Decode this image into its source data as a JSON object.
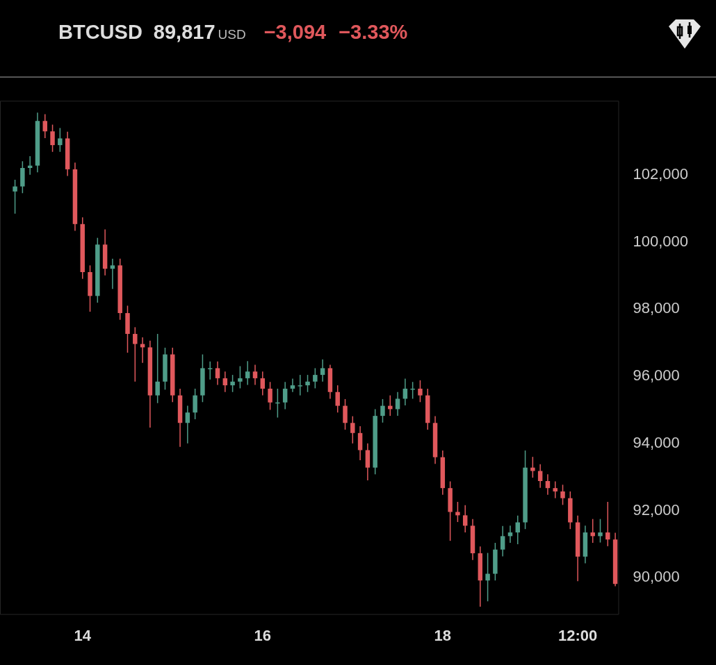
{
  "chart_data": {
    "type": "candlestick",
    "title": "BTCUSD",
    "annotations": [
      "89,817",
      "USD",
      "−3,094",
      "−3.33%"
    ],
    "x": [
      "--11-13T06:00",
      "--11-13T08:00",
      "--11-13T10:00",
      "--11-13T12:00",
      "--11-13T14:00",
      "--11-13T16:00",
      "--11-13T18:00",
      "--11-13T20:00",
      "--11-13T22:00",
      "--11-14T00:00",
      "--11-14T02:00",
      "--11-14T04:00",
      "--11-14T06:00",
      "--11-14T08:00",
      "--11-14T10:00",
      "--11-14T12:00",
      "--11-14T14:00",
      "--11-14T16:00",
      "--11-14T18:00",
      "--11-14T20:00",
      "--11-14T22:00",
      "--11-15T00:00",
      "--11-15T02:00",
      "--11-15T04:00",
      "--11-15T06:00",
      "--11-15T08:00",
      "--11-15T10:00",
      "--11-15T12:00",
      "--11-15T14:00",
      "--11-15T16:00",
      "--11-15T18:00",
      "--11-15T20:00",
      "--11-15T22:00",
      "--11-16T00:00",
      "--11-16T02:00",
      "--11-16T04:00",
      "--11-16T06:00",
      "--11-16T08:00",
      "--11-16T10:00",
      "--11-16T12:00",
      "--11-16T14:00",
      "--11-16T16:00",
      "--11-16T18:00",
      "--11-16T20:00",
      "--11-16T22:00",
      "--11-17T00:00",
      "--11-17T02:00",
      "--11-17T04:00",
      "--11-17T06:00",
      "--11-17T08:00",
      "--11-17T10:00",
      "--11-17T12:00",
      "--11-17T14:00",
      "--11-17T16:00",
      "--11-17T18:00",
      "--11-17T20:00",
      "--11-17T22:00",
      "--11-18T00:00",
      "--11-18T02:00",
      "--11-18T04:00",
      "--11-18T06:00",
      "--11-18T08:00",
      "--11-18T10:00",
      "--11-18T12:00",
      "--11-18T14:00",
      "--11-18T16:00",
      "--11-18T18:00",
      "--11-18T20:00",
      "--11-18T22:00",
      "--11-19T00:00",
      "--11-19T02:00",
      "--11-19T04:00",
      "--11-19T06:00",
      "--11-19T08:00",
      "--11-19T10:00",
      "--11-19T12:00",
      "--11-19T14:00",
      "--11-19T16:00",
      "--11-19T18:00",
      "--11-19T20:00",
      "--11-19T22:00"
    ],
    "ohlc": [
      [
        101500,
        101850,
        100840,
        101650
      ],
      [
        101650,
        102400,
        101450,
        102200
      ],
      [
        102200,
        102550,
        102000,
        102270
      ],
      [
        102270,
        103850,
        102070,
        103600
      ],
      [
        103600,
        103800,
        103090,
        103290
      ],
      [
        103290,
        103490,
        102680,
        102880
      ],
      [
        102880,
        103390,
        102680,
        103080
      ],
      [
        103080,
        103280,
        101960,
        102160
      ],
      [
        102160,
        102360,
        100330,
        100530
      ],
      [
        100530,
        100730,
        98900,
        99100
      ],
      [
        99100,
        99300,
        97920,
        98390
      ],
      [
        98390,
        100120,
        98190,
        99920
      ],
      [
        99920,
        100370,
        99000,
        99200
      ],
      [
        99200,
        99500,
        98600,
        99300
      ],
      [
        99300,
        99500,
        97680,
        97880
      ],
      [
        97880,
        98100,
        96700,
        97260
      ],
      [
        97260,
        97460,
        95840,
        96960
      ],
      [
        96960,
        97160,
        96400,
        96860
      ],
      [
        96860,
        97060,
        94470,
        95430
      ],
      [
        95430,
        97260,
        95200,
        95840
      ],
      [
        95840,
        96850,
        95600,
        96650
      ],
      [
        96650,
        96850,
        95230,
        95430
      ],
      [
        95430,
        95630,
        93900,
        94610
      ],
      [
        94610,
        95120,
        94000,
        94920
      ],
      [
        94920,
        95630,
        94720,
        95430
      ],
      [
        95430,
        96650,
        95230,
        96240
      ],
      [
        96240,
        96440,
        95900,
        96240
      ],
      [
        96240,
        96440,
        95740,
        95940
      ],
      [
        95940,
        96140,
        95530,
        95730
      ],
      [
        95730,
        96040,
        95530,
        95840
      ],
      [
        95840,
        96300,
        95640,
        95940
      ],
      [
        95940,
        96450,
        95740,
        96140
      ],
      [
        96140,
        96340,
        95740,
        95940
      ],
      [
        95940,
        96140,
        95430,
        95630
      ],
      [
        95630,
        95830,
        95000,
        95220
      ],
      [
        95220,
        95630,
        94770,
        95220
      ],
      [
        95220,
        95830,
        95020,
        95630
      ],
      [
        95630,
        95930,
        95530,
        95730
      ],
      [
        95730,
        96040,
        95430,
        95730
      ],
      [
        95730,
        96040,
        95530,
        95840
      ],
      [
        95840,
        96240,
        95640,
        96040
      ],
      [
        96040,
        96500,
        95840,
        96240
      ],
      [
        96240,
        96340,
        95330,
        95530
      ],
      [
        95530,
        95730,
        94920,
        95120
      ],
      [
        95120,
        95320,
        94410,
        94610
      ],
      [
        94610,
        94810,
        94000,
        94310
      ],
      [
        94310,
        94510,
        93500,
        93800
      ],
      [
        93800,
        94000,
        92900,
        93280
      ],
      [
        93280,
        95020,
        93080,
        94820
      ],
      [
        94820,
        95320,
        94620,
        95120
      ],
      [
        95120,
        95430,
        94820,
        95020
      ],
      [
        95020,
        95530,
        94820,
        95330
      ],
      [
        95330,
        95930,
        95130,
        95630
      ],
      [
        95630,
        95830,
        95330,
        95630
      ],
      [
        95630,
        95880,
        95230,
        95430
      ],
      [
        95430,
        95630,
        94410,
        94610
      ],
      [
        94610,
        94810,
        93390,
        93590
      ],
      [
        93590,
        93790,
        92470,
        92670
      ],
      [
        92670,
        92870,
        91100,
        91960
      ],
      [
        91960,
        92260,
        91660,
        91860
      ],
      [
        91860,
        92160,
        91350,
        91550
      ],
      [
        91550,
        91750,
        90530,
        90730
      ],
      [
        90730,
        90930,
        89140,
        89920
      ],
      [
        89920,
        90740,
        89300,
        90120
      ],
      [
        90120,
        91040,
        89920,
        90840
      ],
      [
        90840,
        91540,
        90640,
        91240
      ],
      [
        91240,
        91550,
        91040,
        91350
      ],
      [
        91350,
        91850,
        91000,
        91650
      ],
      [
        91650,
        93790,
        91450,
        93280
      ],
      [
        93280,
        93600,
        92980,
        93180
      ],
      [
        93180,
        93380,
        92680,
        92880
      ],
      [
        92880,
        93080,
        92470,
        92670
      ],
      [
        92670,
        92870,
        92370,
        92570
      ],
      [
        92570,
        92770,
        92170,
        92370
      ],
      [
        92370,
        92570,
        91450,
        91650
      ],
      [
        91650,
        91850,
        89900,
        90630
      ],
      [
        90630,
        91550,
        90430,
        91350
      ],
      [
        91350,
        91750,
        91040,
        91240
      ],
      [
        91240,
        91750,
        91050,
        91350
      ],
      [
        91350,
        92260,
        90940,
        91140
      ],
      [
        91140,
        91340,
        89750,
        89817
      ]
    ],
    "xlim": [
      "--11-13T02:00",
      "--11-19T23:00"
    ],
    "xticks": [
      {
        "value": "--11-14",
        "label": "14"
      },
      {
        "value": "--11-16",
        "label": "16"
      },
      {
        "value": "--11-18",
        "label": "18"
      },
      {
        "value": "--11-19T12:00",
        "label": "12:00"
      }
    ],
    "ylim": [
      88900,
      104200
    ],
    "yticks": [
      {
        "value": 90000,
        "label": "90,000"
      },
      {
        "value": 92000,
        "label": "92,000"
      },
      {
        "value": 94000,
        "label": "94,000"
      },
      {
        "value": 96000,
        "label": "96,000"
      },
      {
        "value": 98000,
        "label": "98,000"
      },
      {
        "value": 100000,
        "label": "100,000"
      },
      {
        "value": 102000,
        "label": "102,000"
      }
    ]
  }
}
